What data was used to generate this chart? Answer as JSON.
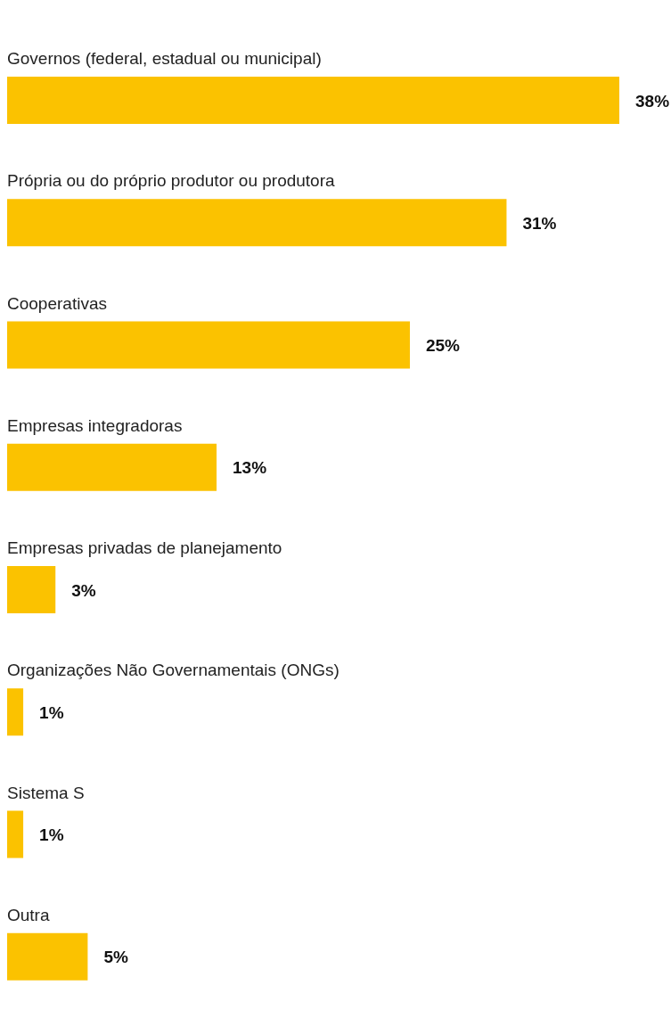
{
  "chart_data": {
    "type": "bar",
    "orientation": "horizontal",
    "categories": [
      "Governos (federal, estadual ou municipal)",
      "Própria ou do próprio produtor ou produtora",
      "Cooperativas",
      "Empresas integradoras",
      "Empresas privadas de planejamento",
      "Organizações Não Governamentais (ONGs)",
      "Sistema S",
      "Outra"
    ],
    "values": [
      38,
      31,
      25,
      13,
      3,
      1,
      1,
      5
    ],
    "value_labels": [
      "38%",
      "31%",
      "25%",
      "13%",
      "3%",
      "1%",
      "1%",
      "5%"
    ],
    "color": "#fbc200"
  }
}
